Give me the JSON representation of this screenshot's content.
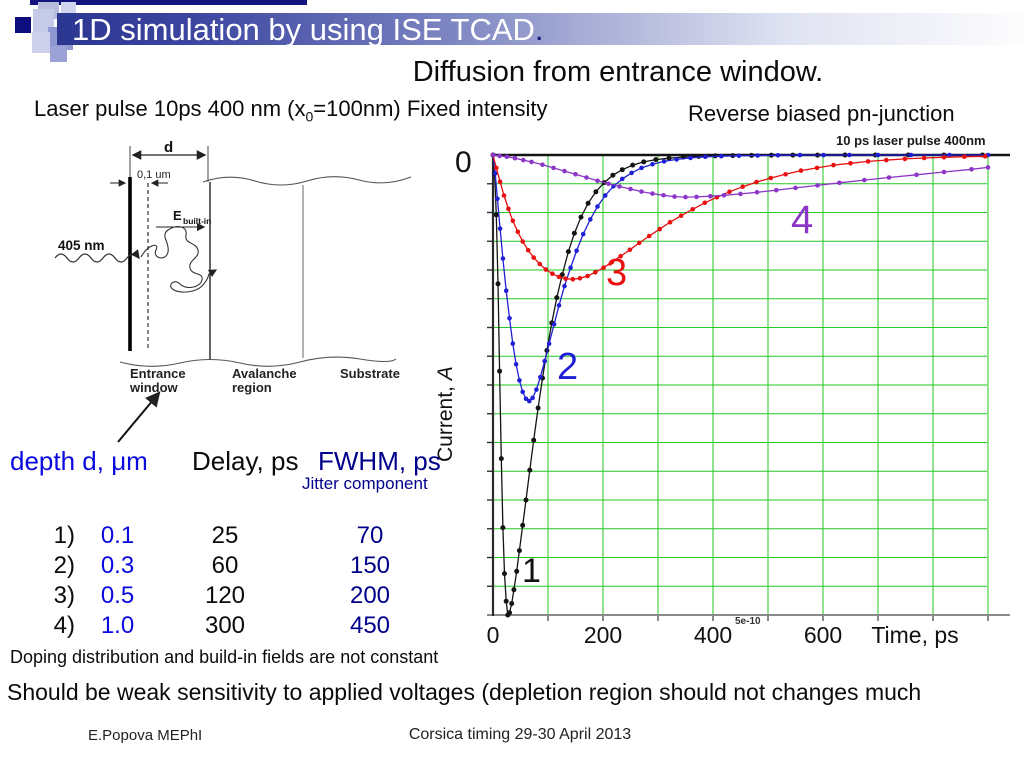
{
  "slide": {
    "title": "1D simulation by using ISE TCAD",
    "title_period": ".",
    "subtitle": "Diffusion from entrance window.",
    "left_heading_pre": "Laser pulse 10ps 400 nm (x",
    "left_heading_sub": "0",
    "left_heading_post": "=100nm) Fixed intensity",
    "right_heading": "Reverse biased pn-junction"
  },
  "theme": {
    "navy": "#14147e",
    "band_left": "#2b3690",
    "band_right": "#fdfdfe",
    "blue_text": "#0a0ae0",
    "dark_blue_text": "#00008b",
    "grid_green": "#22c922",
    "curve_black": "#141414",
    "curve_blue": "#1f1fd6",
    "curve_red": "#e81010",
    "curve_purple": "#8c36c8"
  },
  "diagram": {
    "d": "d",
    "thickness": "0,1 um",
    "efield": "E",
    "efield_sub": "built-in",
    "wavelength": "405 nm",
    "entrance1": "Entrance",
    "entrance2": "window",
    "avalanche1": "Avalanche",
    "avalanche2": "region",
    "substrate": "Substrate"
  },
  "table": {
    "col_depth": "depth d, μm",
    "col_delay": "Delay, ps",
    "col_fwhm": "FWHM, ps",
    "jitter_note": "Jitter component",
    "rows": [
      {
        "num": "1)",
        "depth": "0.1",
        "delay": "25",
        "fwhm": "70"
      },
      {
        "num": "2)",
        "depth": "0.3",
        "delay": "60",
        "fwhm": "150"
      },
      {
        "num": "3)",
        "depth": "0.5",
        "delay": "120",
        "fwhm": "200"
      },
      {
        "num": "4)",
        "depth": "1.0",
        "delay": "300",
        "fwhm": "450"
      }
    ]
  },
  "notes": {
    "doping": "Doping distribution and build-in fields are not constant",
    "sensitivity": "Should be weak sensitivity to applied voltages (depletion region should not changes much"
  },
  "footer": {
    "author": "E.Popova MEPhI",
    "conference": "Corsica timing 29-30 April 2013"
  },
  "chart_data": {
    "type": "line",
    "title": "10 ps laser pulse 400nm",
    "xlabel": "Time, ps",
    "ylabel_main": "Current, ",
    "ylabel_unit": "A",
    "zero_label": "0",
    "extra_axis_label": "5e-10",
    "x_ticks": [
      "0",
      "200",
      "400",
      "600"
    ],
    "x_range": [
      0,
      900
    ],
    "x_grid_step_ps": 100,
    "y_divisions": 16,
    "grid_on": true,
    "grid_color": "#22c922",
    "y_axis_note": "current shown as negative pulse depth, relative units (0 at top)",
    "series": [
      {
        "name": "1",
        "depth_um": 0.1,
        "delay_ps": 25,
        "fwhm_ps": 70,
        "color": "#141414",
        "points": [
          [
            0,
            0
          ],
          [
            3,
            0.04
          ],
          [
            6,
            0.13
          ],
          [
            9,
            0.28
          ],
          [
            12,
            0.47
          ],
          [
            15,
            0.66
          ],
          [
            18,
            0.81
          ],
          [
            21,
            0.91
          ],
          [
            24,
            0.97
          ],
          [
            27,
            1.0
          ],
          [
            30,
            0.995
          ],
          [
            34,
            0.975
          ],
          [
            38,
            0.945
          ],
          [
            43,
            0.905
          ],
          [
            48,
            0.86
          ],
          [
            54,
            0.805
          ],
          [
            60,
            0.75
          ],
          [
            67,
            0.685
          ],
          [
            74,
            0.62
          ],
          [
            82,
            0.55
          ],
          [
            90,
            0.485
          ],
          [
            98,
            0.425
          ],
          [
            107,
            0.365
          ],
          [
            116,
            0.31
          ],
          [
            126,
            0.26
          ],
          [
            137,
            0.21
          ],
          [
            148,
            0.17
          ],
          [
            160,
            0.135
          ],
          [
            173,
            0.105
          ],
          [
            187,
            0.08
          ],
          [
            202,
            0.06
          ],
          [
            218,
            0.044
          ],
          [
            235,
            0.032
          ],
          [
            254,
            0.022
          ],
          [
            274,
            0.015
          ],
          [
            296,
            0.01
          ],
          [
            320,
            0.007
          ],
          [
            346,
            0.0045
          ],
          [
            374,
            0.003
          ],
          [
            404,
            0.002
          ],
          [
            436,
            0.0013
          ],
          [
            470,
            0.0008
          ],
          [
            506,
            0.0005
          ],
          [
            545,
            0.0003
          ],
          [
            590,
            0.0002
          ],
          [
            640,
            0.0001
          ],
          [
            695,
            0.0001
          ],
          [
            755,
            0
          ],
          [
            820,
            0
          ],
          [
            890,
            0
          ]
        ]
      },
      {
        "name": "2",
        "depth_um": 0.3,
        "delay_ps": 60,
        "fwhm_ps": 150,
        "color": "#1f1fd6",
        "points": [
          [
            0,
            0
          ],
          [
            4,
            0.04
          ],
          [
            8,
            0.095
          ],
          [
            13,
            0.16
          ],
          [
            18,
            0.225
          ],
          [
            24,
            0.295
          ],
          [
            30,
            0.355
          ],
          [
            36,
            0.41
          ],
          [
            42,
            0.455
          ],
          [
            48,
            0.49
          ],
          [
            54,
            0.515
          ],
          [
            60,
            0.53
          ],
          [
            66,
            0.535
          ],
          [
            72,
            0.528
          ],
          [
            79,
            0.51
          ],
          [
            86,
            0.483
          ],
          [
            94,
            0.448
          ],
          [
            102,
            0.41
          ],
          [
            111,
            0.368
          ],
          [
            120,
            0.327
          ],
          [
            130,
            0.285
          ],
          [
            141,
            0.245
          ],
          [
            152,
            0.208
          ],
          [
            164,
            0.172
          ],
          [
            177,
            0.14
          ],
          [
            190,
            0.112
          ],
          [
            204,
            0.088
          ],
          [
            219,
            0.068
          ],
          [
            235,
            0.052
          ],
          [
            252,
            0.039
          ],
          [
            270,
            0.028
          ],
          [
            290,
            0.02
          ],
          [
            311,
            0.014
          ],
          [
            334,
            0.0095
          ],
          [
            359,
            0.0063
          ],
          [
            386,
            0.004
          ],
          [
            415,
            0.0026
          ],
          [
            447,
            0.0016
          ],
          [
            481,
            0.001
          ],
          [
            518,
            0.0006
          ],
          [
            558,
            0.0003
          ],
          [
            601,
            0.0002
          ],
          [
            648,
            0.0001
          ],
          [
            700,
            0
          ],
          [
            760,
            0
          ],
          [
            830,
            0
          ],
          [
            900,
            0
          ]
        ]
      },
      {
        "name": "3",
        "depth_um": 0.5,
        "delay_ps": 120,
        "fwhm_ps": 200,
        "color": "#e81010",
        "points": [
          [
            0,
            0
          ],
          [
            6,
            0.028
          ],
          [
            13,
            0.058
          ],
          [
            20,
            0.088
          ],
          [
            28,
            0.117
          ],
          [
            36,
            0.143
          ],
          [
            45,
            0.167
          ],
          [
            54,
            0.188
          ],
          [
            64,
            0.207
          ],
          [
            74,
            0.223
          ],
          [
            85,
            0.237
          ],
          [
            96,
            0.249
          ],
          [
            108,
            0.258
          ],
          [
            120,
            0.265
          ],
          [
            132,
            0.269
          ],
          [
            145,
            0.27
          ],
          [
            158,
            0.268
          ],
          [
            172,
            0.263
          ],
          [
            186,
            0.255
          ],
          [
            201,
            0.245
          ],
          [
            216,
            0.233
          ],
          [
            232,
            0.22
          ],
          [
            249,
            0.206
          ],
          [
            266,
            0.191
          ],
          [
            284,
            0.176
          ],
          [
            303,
            0.161
          ],
          [
            322,
            0.146
          ],
          [
            342,
            0.132
          ],
          [
            363,
            0.118
          ],
          [
            385,
            0.104
          ],
          [
            407,
            0.092
          ],
          [
            430,
            0.08
          ],
          [
            454,
            0.069
          ],
          [
            479,
            0.059
          ],
          [
            505,
            0.05
          ],
          [
            532,
            0.042
          ],
          [
            560,
            0.034
          ],
          [
            589,
            0.028
          ],
          [
            619,
            0.022
          ],
          [
            650,
            0.018
          ],
          [
            682,
            0.014
          ],
          [
            715,
            0.011
          ],
          [
            749,
            0.0085
          ],
          [
            784,
            0.0065
          ],
          [
            820,
            0.005
          ],
          [
            857,
            0.0038
          ],
          [
            895,
            0.0028
          ]
        ]
      },
      {
        "name": "4",
        "depth_um": 1.0,
        "delay_ps": 300,
        "fwhm_ps": 450,
        "color": "#8c36c8",
        "points": [
          [
            0,
            0
          ],
          [
            12,
            0.002
          ],
          [
            25,
            0.004
          ],
          [
            40,
            0.007
          ],
          [
            55,
            0.011
          ],
          [
            70,
            0.015
          ],
          [
            90,
            0.021
          ],
          [
            110,
            0.028
          ],
          [
            130,
            0.035
          ],
          [
            150,
            0.042
          ],
          [
            170,
            0.049
          ],
          [
            190,
            0.056
          ],
          [
            210,
            0.0625
          ],
          [
            230,
            0.0685
          ],
          [
            250,
            0.074
          ],
          [
            270,
            0.0795
          ],
          [
            290,
            0.084
          ],
          [
            310,
            0.0875
          ],
          [
            330,
            0.0905
          ],
          [
            350,
            0.0915
          ],
          [
            370,
            0.091
          ],
          [
            395,
            0.0895
          ],
          [
            420,
            0.0875
          ],
          [
            450,
            0.0845
          ],
          [
            480,
            0.081
          ],
          [
            515,
            0.0765
          ],
          [
            550,
            0.0715
          ],
          [
            590,
            0.066
          ],
          [
            630,
            0.0605
          ],
          [
            675,
            0.0545
          ],
          [
            720,
            0.049
          ],
          [
            770,
            0.043
          ],
          [
            820,
            0.037
          ],
          [
            870,
            0.031
          ],
          [
            900,
            0.027
          ]
        ]
      }
    ]
  }
}
